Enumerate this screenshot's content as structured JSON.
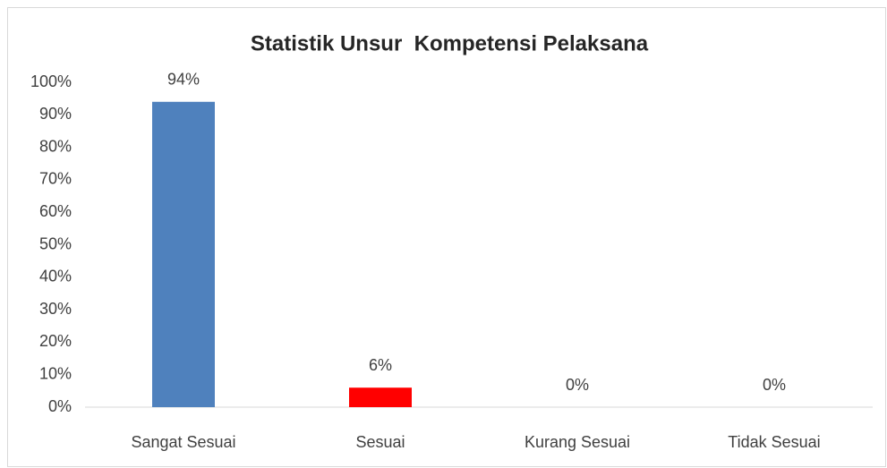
{
  "chart_data": {
    "type": "bar",
    "title": "Statistik Unsur  Kompetensi Pelaksana",
    "categories": [
      "Sangat Sesuai",
      "Sesuai",
      "Kurang Sesuai",
      "Tidak Sesuai"
    ],
    "values": [
      94,
      6,
      0,
      0
    ],
    "value_labels": [
      "94%",
      "6%",
      "0%",
      "0%"
    ],
    "colors": [
      "#4f81bd",
      "#ff0000",
      "#4f81bd",
      "#4f81bd"
    ],
    "ylim": [
      0,
      100
    ],
    "yticks": [
      {
        "value": 0,
        "label": "0%"
      },
      {
        "value": 10,
        "label": "10%"
      },
      {
        "value": 20,
        "label": "20%"
      },
      {
        "value": 30,
        "label": "30%"
      },
      {
        "value": 40,
        "label": "40%"
      },
      {
        "value": 50,
        "label": "50%"
      },
      {
        "value": 60,
        "label": "60%"
      },
      {
        "value": 70,
        "label": "70%"
      },
      {
        "value": 80,
        "label": "80%"
      },
      {
        "value": 90,
        "label": "90%"
      },
      {
        "value": 100,
        "label": "100%"
      }
    ],
    "grid": false
  }
}
